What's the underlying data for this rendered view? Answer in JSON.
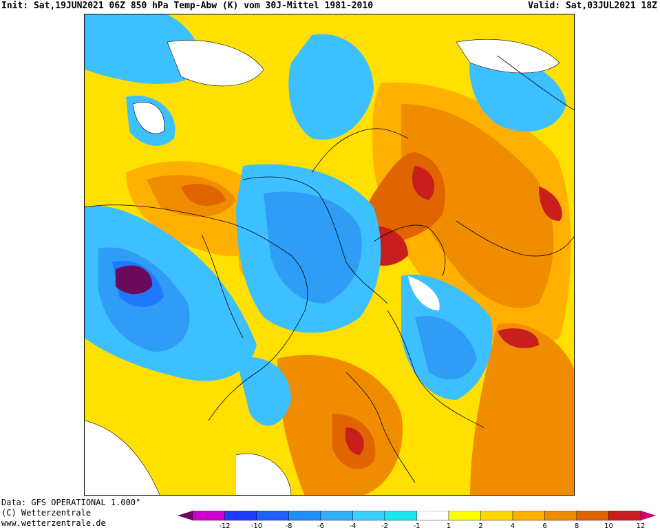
{
  "header": {
    "left": "Init: Sat,19JUN2021 06Z 850 hPa Temp-Abw (K) vom 30J-Mittel 1981-2010",
    "right": "Valid: Sat,03JUL2021 18Z"
  },
  "footer": {
    "line1": "Data: GFS OPERATIONAL 1.000°",
    "line2": "(C) Wetterzentrale",
    "line3": "www.wetterzentrale.de"
  },
  "colors": {
    "purple": "#6a0a5a",
    "magenta": "#d000d0",
    "blue_dark": "#1e3cff",
    "blue": "#1f78ff",
    "blue_mid": "#2f9cf5",
    "blue_light": "#3cc0ff",
    "cyan": "#19e0f0",
    "white": "#ffffff",
    "yellow": "#ffff00",
    "yellow_dark": "#ffd800",
    "orange_light": "#ffb000",
    "orange": "#f08c00",
    "orange_dark": "#e06400",
    "red": "#c81e1e",
    "pink": "#d00078"
  },
  "colorbar": {
    "ticks": [
      "-12",
      "-10",
      "-8",
      "-6",
      "-4",
      "-2",
      "-1",
      "1",
      "2",
      "4",
      "6",
      "8",
      "10",
      "12"
    ],
    "swatches": [
      "#d000d0",
      "#1e3cff",
      "#1f60ff",
      "#1f8cff",
      "#2fb0f5",
      "#3cd0ff",
      "#19e8f0",
      "#ffffff",
      "#ffff00",
      "#ffd800",
      "#ffb000",
      "#f08c00",
      "#e06400",
      "#c81e1e"
    ]
  }
}
